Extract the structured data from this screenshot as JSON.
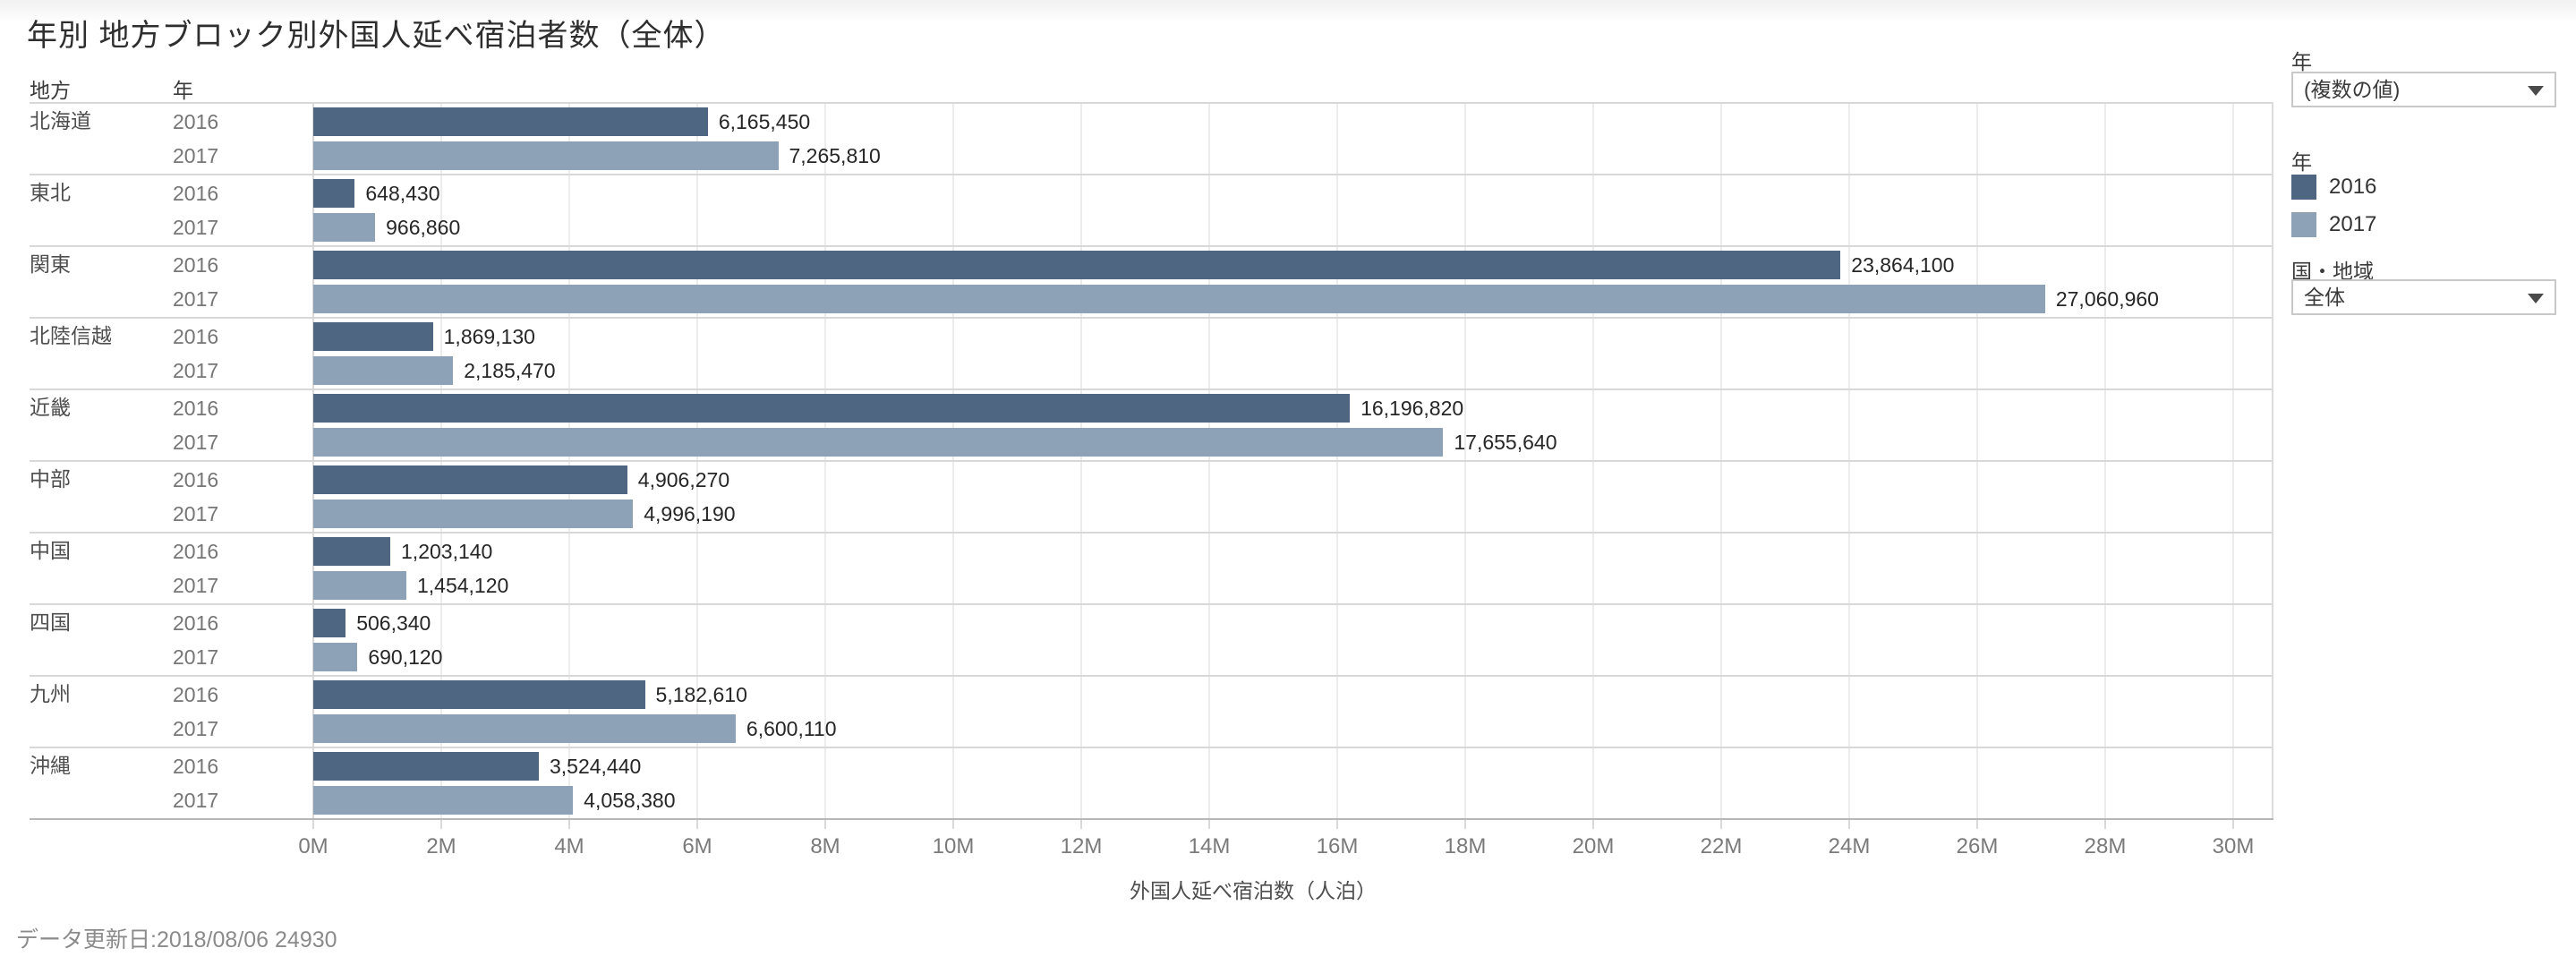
{
  "page": {
    "title": "年別 地方ブロック別外国人延べ宿泊者数（全体）",
    "footer": "データ更新日:2018/08/06 24930"
  },
  "table_headers": {
    "region": "地方",
    "year": "年"
  },
  "chart_data": {
    "type": "bar",
    "orientation": "horizontal",
    "title": "年別 地方ブロック別外国人延べ宿泊者数（全体）",
    "categories": [
      "北海道",
      "東北",
      "関東",
      "北陸信越",
      "近畿",
      "中部",
      "中国",
      "四国",
      "九州",
      "沖縄"
    ],
    "series": [
      {
        "name": "2016",
        "color": "#4e6681",
        "values": [
          6165450,
          648430,
          23864100,
          1869130,
          16196820,
          4906270,
          1203140,
          506340,
          5182610,
          3524440
        ]
      },
      {
        "name": "2017",
        "color": "#8da2b7",
        "values": [
          7265810,
          966860,
          27060960,
          2185470,
          17655640,
          4996190,
          1454120,
          690120,
          6600110,
          4058380
        ]
      }
    ],
    "xlabel": "外国人延べ宿泊数（人泊）",
    "xlim": [
      0,
      30000000
    ],
    "tick_step": 2000000,
    "grid": "vertical",
    "legend_position": "right",
    "rows": [
      {
        "region": "北海道",
        "bars": [
          {
            "year": "2016",
            "value": 6165450,
            "label": "6,165,450"
          },
          {
            "year": "2017",
            "value": 7265810,
            "label": "7,265,810"
          }
        ]
      },
      {
        "region": "東北",
        "bars": [
          {
            "year": "2016",
            "value": 648430,
            "label": "648,430"
          },
          {
            "year": "2017",
            "value": 966860,
            "label": "966,860"
          }
        ]
      },
      {
        "region": "関東",
        "bars": [
          {
            "year": "2016",
            "value": 23864100,
            "label": "23,864,100"
          },
          {
            "year": "2017",
            "value": 27060960,
            "label": "27,060,960"
          }
        ]
      },
      {
        "region": "北陸信越",
        "bars": [
          {
            "year": "2016",
            "value": 1869130,
            "label": "1,869,130"
          },
          {
            "year": "2017",
            "value": 2185470,
            "label": "2,185,470"
          }
        ]
      },
      {
        "region": "近畿",
        "bars": [
          {
            "year": "2016",
            "value": 16196820,
            "label": "16,196,820"
          },
          {
            "year": "2017",
            "value": 17655640,
            "label": "17,655,640"
          }
        ]
      },
      {
        "region": "中部",
        "bars": [
          {
            "year": "2016",
            "value": 4906270,
            "label": "4,906,270"
          },
          {
            "year": "2017",
            "value": 4996190,
            "label": "4,996,190"
          }
        ]
      },
      {
        "region": "中国",
        "bars": [
          {
            "year": "2016",
            "value": 1203140,
            "label": "1,203,140"
          },
          {
            "year": "2017",
            "value": 1454120,
            "label": "1,454,120"
          }
        ]
      },
      {
        "region": "四国",
        "bars": [
          {
            "year": "2016",
            "value": 506340,
            "label": "506,340"
          },
          {
            "year": "2017",
            "value": 690120,
            "label": "690,120"
          }
        ]
      },
      {
        "region": "九州",
        "bars": [
          {
            "year": "2016",
            "value": 5182610,
            "label": "5,182,610"
          },
          {
            "year": "2017",
            "value": 6600110,
            "label": "6,600,110"
          }
        ]
      },
      {
        "region": "沖縄",
        "bars": [
          {
            "year": "2016",
            "value": 3524440,
            "label": "3,524,440"
          },
          {
            "year": "2017",
            "value": 4058380,
            "label": "4,058,380"
          }
        ]
      }
    ]
  },
  "axis": {
    "title": "外国人延べ宿泊数（人泊）",
    "ticks": [
      "0M",
      "2M",
      "4M",
      "6M",
      "8M",
      "10M",
      "12M",
      "14M",
      "16M",
      "18M",
      "20M",
      "22M",
      "24M",
      "26M",
      "28M",
      "30M"
    ]
  },
  "filters": [
    {
      "label": "年",
      "value": "(複数の値)"
    },
    {
      "label": "国・地域",
      "value": "全体"
    }
  ],
  "legend": {
    "title": "年",
    "items": [
      {
        "label": "2016",
        "color": "#4e6681"
      },
      {
        "label": "2017",
        "color": "#8da2b7"
      }
    ]
  },
  "icons": {
    "dropdown_caret": "caret-down-icon"
  }
}
